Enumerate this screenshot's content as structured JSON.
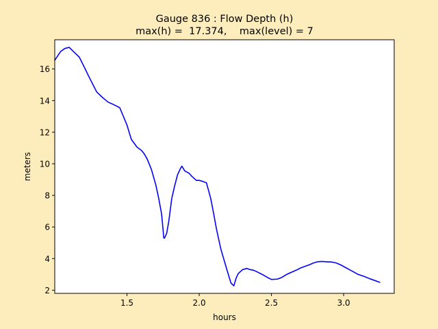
{
  "figure_background": "#fdedbd",
  "chart_data": {
    "type": "line",
    "title_line1": "Gauge 836 : Flow Depth (h)",
    "title_line2": "max(h) =  17.374,    max(level) = 7",
    "xlabel": "hours",
    "ylabel": "meters",
    "xlim": [
      1.0,
      3.35
    ],
    "ylim": [
      1.8,
      17.85
    ],
    "x_ticks": [
      1.5,
      2.0,
      2.5,
      3.0
    ],
    "x_tick_labels": [
      "1.5",
      "2.0",
      "2.5",
      "3.0"
    ],
    "y_ticks": [
      2,
      4,
      6,
      8,
      10,
      12,
      14,
      16
    ],
    "y_tick_labels": [
      "2",
      "4",
      "6",
      "8",
      "10",
      "12",
      "14",
      "16"
    ],
    "grid": false,
    "series": [
      {
        "color": "#0000ff",
        "x": [
          1.0,
          1.04,
          1.07,
          1.1,
          1.13,
          1.17,
          1.2,
          1.24,
          1.29,
          1.33,
          1.37,
          1.4,
          1.45,
          1.5,
          1.53,
          1.57,
          1.6,
          1.62,
          1.64,
          1.67,
          1.7,
          1.72,
          1.74,
          1.755,
          1.76,
          1.775,
          1.79,
          1.81,
          1.83,
          1.85,
          1.87,
          1.88,
          1.9,
          1.93,
          1.95,
          1.98,
          2.0,
          2.02,
          2.05,
          2.08,
          2.1,
          2.12,
          2.15,
          2.19,
          2.22,
          2.24,
          2.255,
          2.27,
          2.3,
          2.33,
          2.35,
          2.38,
          2.41,
          2.44,
          2.47,
          2.5,
          2.54,
          2.57,
          2.6,
          2.63,
          2.66,
          2.68,
          2.7,
          2.73,
          2.76,
          2.79,
          2.82,
          2.85,
          2.88,
          2.92,
          2.95,
          2.98,
          3.02,
          3.06,
          3.1,
          3.14,
          3.18,
          3.22,
          3.25
        ],
        "y": [
          16.55,
          17.1,
          17.3,
          17.37,
          17.1,
          16.75,
          16.2,
          15.45,
          14.55,
          14.2,
          13.9,
          13.78,
          13.55,
          12.45,
          11.55,
          11.05,
          10.85,
          10.62,
          10.3,
          9.62,
          8.65,
          7.8,
          6.8,
          5.3,
          5.3,
          5.6,
          6.4,
          7.8,
          8.6,
          9.3,
          9.7,
          9.85,
          9.55,
          9.4,
          9.2,
          8.95,
          8.95,
          8.9,
          8.8,
          7.8,
          6.85,
          5.85,
          4.6,
          3.35,
          2.45,
          2.28,
          2.75,
          3.05,
          3.3,
          3.38,
          3.31,
          3.25,
          3.12,
          2.98,
          2.82,
          2.68,
          2.7,
          2.8,
          2.97,
          3.1,
          3.22,
          3.3,
          3.4,
          3.5,
          3.6,
          3.72,
          3.8,
          3.82,
          3.8,
          3.78,
          3.72,
          3.6,
          3.4,
          3.2,
          3.0,
          2.88,
          2.73,
          2.6,
          2.5
        ]
      }
    ]
  }
}
